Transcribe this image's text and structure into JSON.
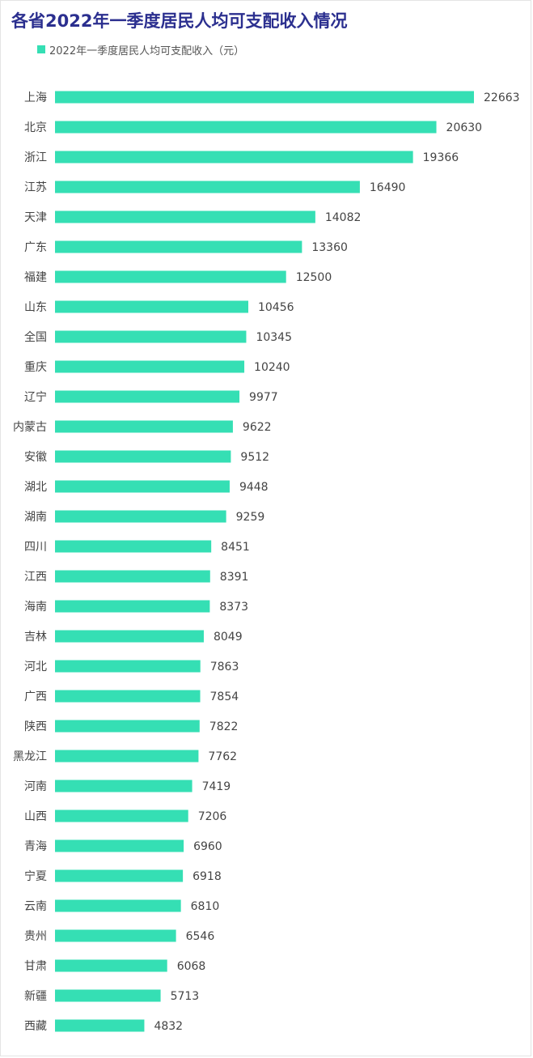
{
  "chart_data": {
    "type": "bar",
    "orientation": "horizontal",
    "title": "各省2022年一季度居民人均可支配收入情况",
    "legend_position": "top-left",
    "grid": false,
    "bar_color": "#35dfb4",
    "title_color": "#2b2f8f",
    "categories": [
      "上海",
      "北京",
      "浙江",
      "江苏",
      "天津",
      "广东",
      "福建",
      "山东",
      "全国",
      "重庆",
      "辽宁",
      "内蒙古",
      "安徽",
      "湖北",
      "湖南",
      "四川",
      "江西",
      "海南",
      "吉林",
      "河北",
      "广西",
      "陕西",
      "黑龙江",
      "河南",
      "山西",
      "青海",
      "宁夏",
      "云南",
      "贵州",
      "甘肃",
      "新疆",
      "西藏"
    ],
    "series": [
      {
        "name": "2022年一季度居民人均可支配收入（元）",
        "values": [
          22663,
          20630,
          19366,
          16490,
          14082,
          13360,
          12500,
          10456,
          10345,
          10240,
          9977,
          9622,
          9512,
          9448,
          9259,
          8451,
          8391,
          8373,
          8049,
          7863,
          7854,
          7822,
          7762,
          7419,
          7206,
          6960,
          6918,
          6810,
          6546,
          6068,
          5713,
          4832
        ]
      }
    ],
    "xlim": [
      0,
      22663
    ]
  }
}
